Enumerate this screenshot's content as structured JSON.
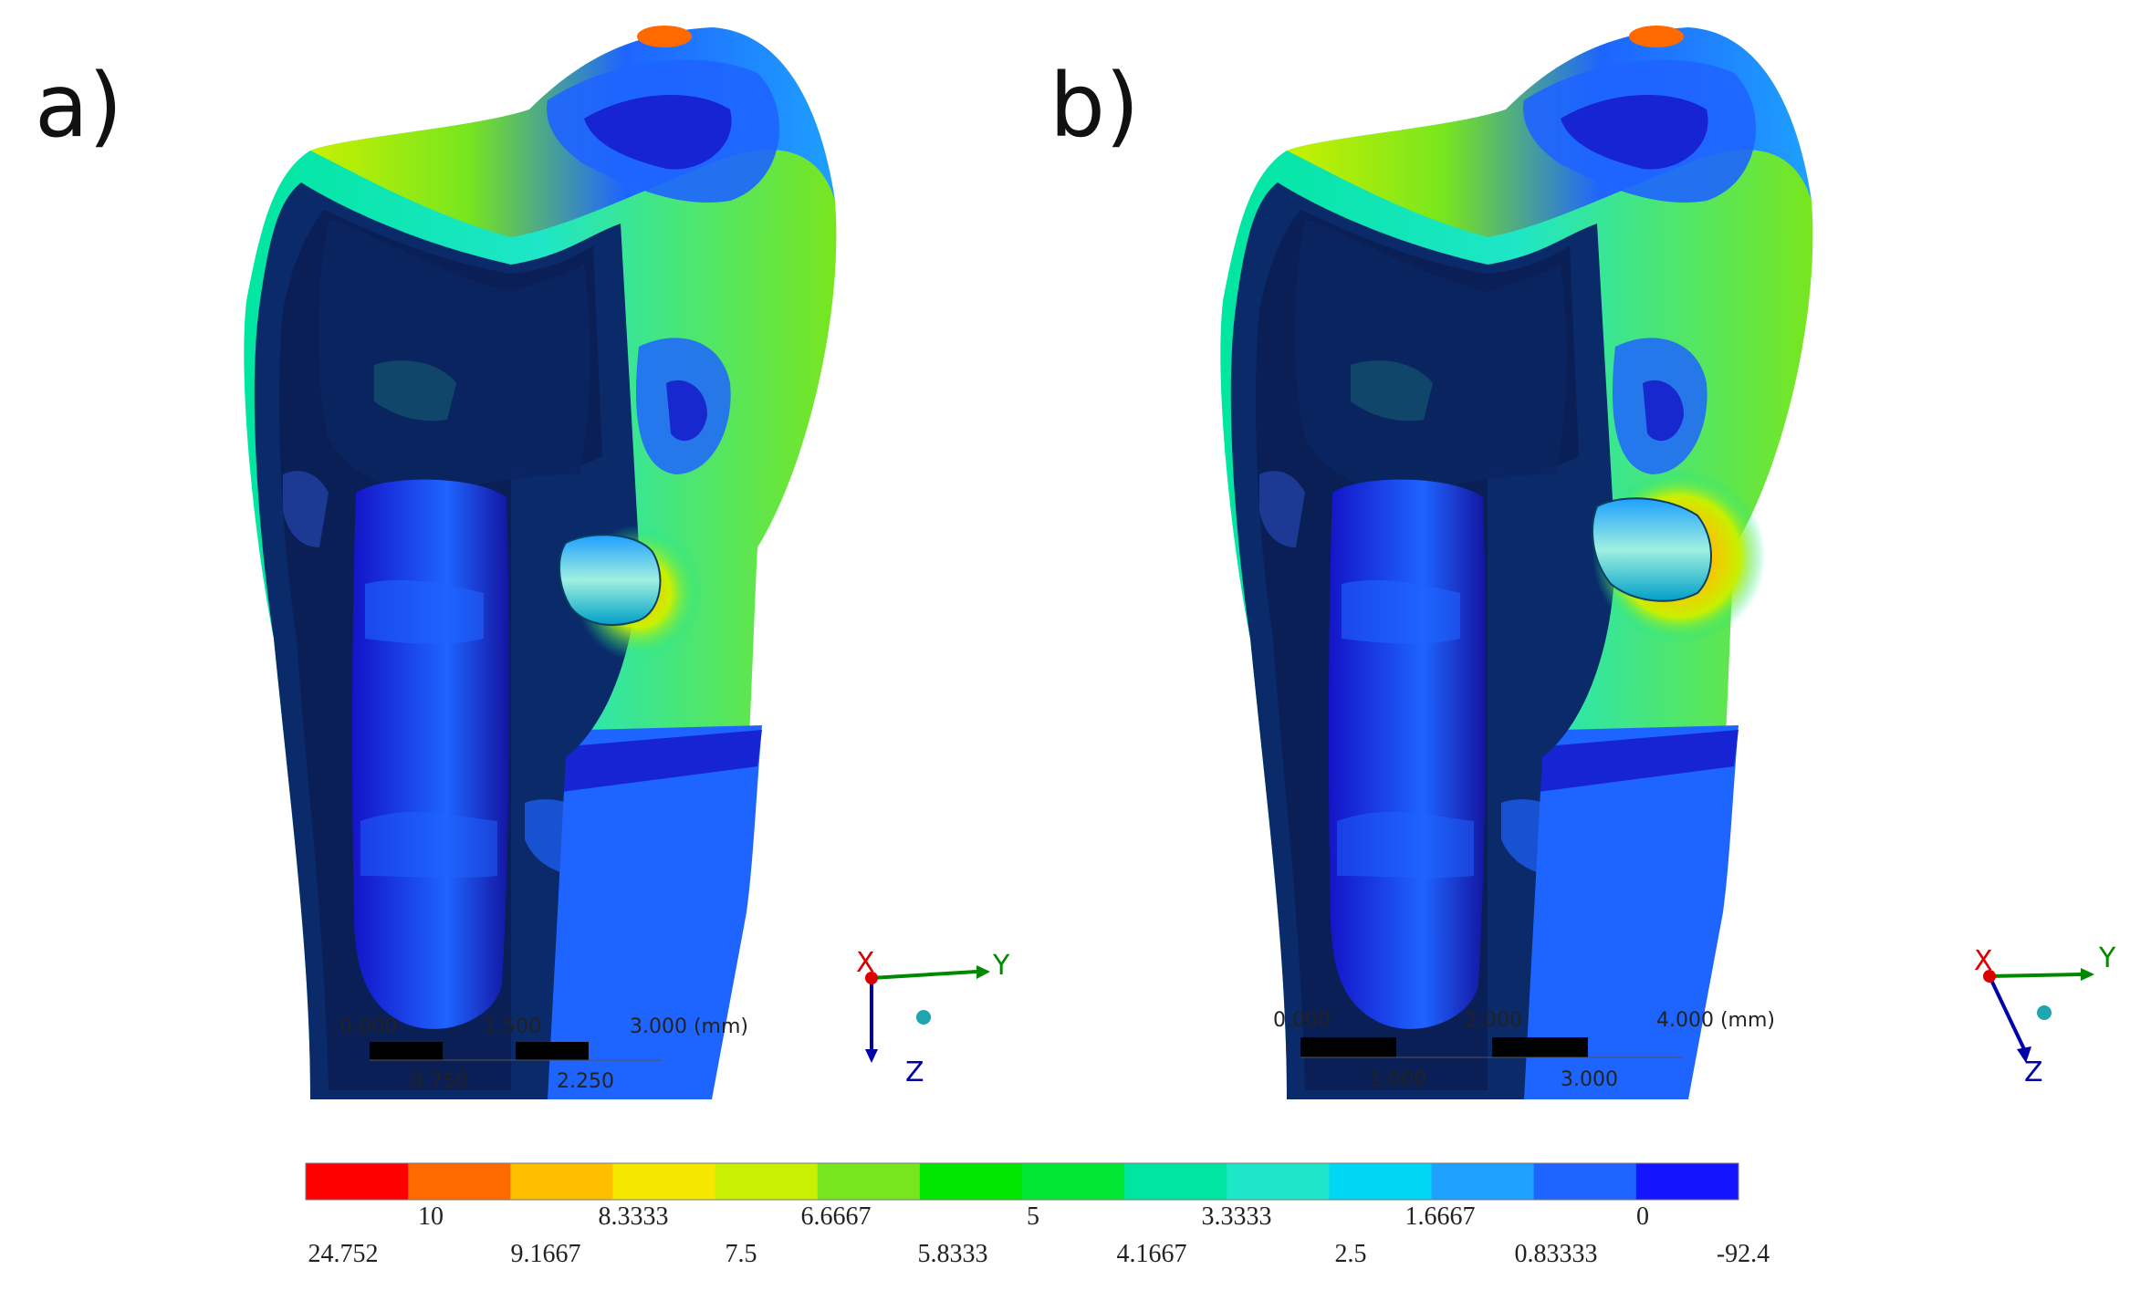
{
  "panels": [
    {
      "label": "a)",
      "scale_bar": {
        "top_labels": [
          "0.000",
          "1.500",
          "3.000 (mm)"
        ],
        "bottom_labels": [
          "0.750",
          "2.250"
        ]
      }
    },
    {
      "label": "b)",
      "scale_bar": {
        "top_labels": [
          "0.000",
          "2.000",
          "4.000 (mm)"
        ],
        "bottom_labels": [
          "1.000",
          "3.000"
        ]
      }
    }
  ],
  "triad": {
    "x": "X",
    "y": "Y",
    "z": "Z"
  },
  "legend": {
    "colors": [
      "#ff0000",
      "#ff6a00",
      "#ffbf00",
      "#f5e700",
      "#c8f000",
      "#78e61e",
      "#00e600",
      "#00e632",
      "#00e6a0",
      "#1ee6c8",
      "#00d7f5",
      "#1ea0ff",
      "#1e64ff",
      "#1414ff"
    ],
    "upper_labels": [
      "10",
      "8.3333",
      "6.6667",
      "5",
      "3.3333",
      "1.6667",
      "0"
    ],
    "lower_labels": [
      "24.752",
      "9.1667",
      "7.5",
      "5.8333",
      "4.1667",
      "2.5",
      "0.83333",
      "-92.4"
    ]
  }
}
